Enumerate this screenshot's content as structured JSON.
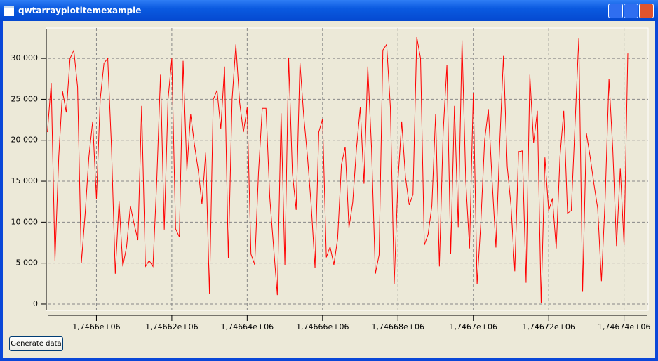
{
  "window": {
    "title": "qwtarrayplotitemexample"
  },
  "button": {
    "label": "Generate data"
  },
  "chart_data": {
    "type": "line",
    "color": "#ff0000",
    "grid": true,
    "xlim": [
      1746586.7,
      1746746.4
    ],
    "ylim": [
      -774,
      33697
    ],
    "xticks": [
      {
        "value": 1746600,
        "label": "1,7466e+06"
      },
      {
        "value": 1746620,
        "label": "1,74662e+06"
      },
      {
        "value": 1746640,
        "label": "1,74664e+06"
      },
      {
        "value": 1746660,
        "label": "1,74666e+06"
      },
      {
        "value": 1746680,
        "label": "1,74668e+06"
      },
      {
        "value": 1746700,
        "label": "1,7467e+06"
      },
      {
        "value": 1746720,
        "label": "1,74672e+06"
      },
      {
        "value": 1746740,
        "label": "1,74674e+06"
      }
    ],
    "yticks": [
      0,
      {
        "value": 5000,
        "label": "5 000"
      },
      {
        "value": 10000,
        "label": "10 000"
      },
      {
        "value": 15000,
        "label": "15 000"
      },
      {
        "value": 20000,
        "label": "20 000"
      },
      {
        "value": 25000,
        "label": "25 000"
      },
      {
        "value": 30000,
        "label": "30 000"
      }
    ],
    "x": [
      1746587,
      1746588,
      1746589,
      1746590,
      1746591,
      1746592,
      1746593,
      1746594,
      1746595,
      1746596,
      1746597,
      1746598,
      1746599,
      1746600,
      1746601,
      1746602,
      1746603,
      1746604,
      1746605,
      1746606,
      1746607,
      1746608,
      1746609,
      1746610,
      1746611,
      1746612,
      1746613,
      1746614,
      1746615,
      1746616,
      1746617,
      1746618,
      1746619,
      1746620,
      1746621,
      1746622,
      1746623,
      1746624,
      1746625,
      1746626,
      1746627,
      1746628,
      1746629,
      1746630,
      1746631,
      1746632,
      1746633,
      1746634,
      1746635,
      1746636,
      1746637,
      1746638,
      1746639,
      1746640,
      1746641,
      1746642,
      1746643,
      1746644,
      1746645,
      1746646,
      1746647,
      1746648,
      1746649,
      1746650,
      1746651,
      1746652,
      1746653,
      1746654,
      1746655,
      1746656,
      1746657,
      1746658,
      1746659,
      1746660,
      1746661,
      1746662,
      1746663,
      1746664,
      1746665,
      1746666,
      1746667,
      1746668,
      1746669,
      1746670,
      1746671,
      1746672,
      1746673,
      1746674,
      1746675,
      1746676,
      1746677,
      1746678,
      1746679,
      1746680,
      1746681,
      1746682,
      1746683,
      1746684,
      1746685,
      1746686,
      1746687,
      1746688,
      1746689,
      1746690,
      1746691,
      1746692,
      1746693,
      1746694,
      1746695,
      1746696,
      1746697,
      1746698,
      1746699,
      1746700,
      1746701,
      1746702,
      1746703,
      1746704,
      1746705,
      1746706,
      1746707,
      1746708,
      1746709,
      1746710,
      1746711,
      1746712,
      1746713,
      1746714,
      1746715,
      1746716,
      1746717,
      1746718,
      1746719,
      1746720,
      1746721,
      1746722,
      1746723,
      1746724,
      1746725,
      1746726,
      1746727,
      1746728,
      1746729,
      1746730,
      1746731,
      1746732,
      1746733,
      1746734,
      1746735,
      1746736,
      1746737,
      1746738,
      1746739,
      1746740,
      1746741
    ],
    "values": [
      21000,
      27000,
      5300,
      18000,
      26000,
      23400,
      30000,
      31000,
      26500,
      5000,
      11000,
      18000,
      22300,
      12800,
      25000,
      29400,
      30000,
      19000,
      3700,
      12600,
      4600,
      7000,
      12000,
      9800,
      7800,
      24200,
      4600,
      5300,
      4600,
      15000,
      28000,
      9100,
      25000,
      30000,
      9200,
      8200,
      29700,
      16300,
      23200,
      19500,
      16400,
      12200,
      18500,
      1200,
      25000,
      26100,
      21400,
      29000,
      5600,
      25000,
      31700,
      24600,
      21000,
      24000,
      6100,
      4800,
      16000,
      23900,
      23900,
      13000,
      7000,
      1100,
      23300,
      4800,
      30100,
      16000,
      11500,
      29500,
      23000,
      18000,
      12000,
      4400,
      21000,
      22600,
      5700,
      7000,
      4800,
      8000,
      17000,
      19200,
      9300,
      12400,
      19000,
      24000,
      14700,
      29000,
      19000,
      3700,
      6000,
      31000,
      31700,
      24000,
      2400,
      15000,
      22300,
      15500,
      12100,
      13400,
      32600,
      30000,
      7200,
      8500,
      12000,
      23200,
      4600,
      21000,
      29200,
      6100,
      24200,
      9400,
      32200,
      15000,
      6800,
      25800,
      2400,
      10000,
      20000,
      23800,
      15000,
      6900,
      19500,
      30300,
      16800,
      12000,
      4000,
      18600,
      18700,
      2600,
      28000,
      19700,
      23600,
      100,
      17900,
      11400,
      12900,
      6800,
      18000,
      23600,
      11100,
      11400,
      22000,
      32500,
      1500,
      20900,
      18000,
      14700,
      11700,
      2800,
      13000,
      27500,
      19000,
      7100,
      16600,
      7200,
      30600
    ]
  }
}
